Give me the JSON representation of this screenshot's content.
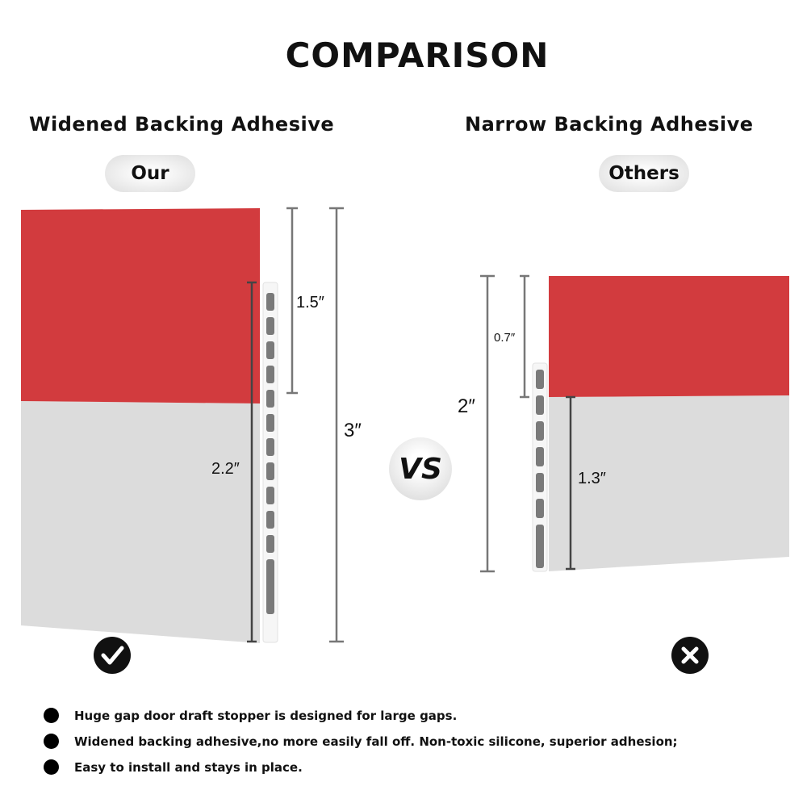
{
  "title": "COMPARISON",
  "left": {
    "heading": "Widened Backing Adhesive",
    "badge": "Our",
    "dims": {
      "top": "1.5″",
      "bottom": "2.2″",
      "total": "3″"
    },
    "verdict_icon": "check-icon"
  },
  "right": {
    "heading": "Narrow Backing Adhesive",
    "badge": "Others",
    "dims": {
      "top": "0.7″",
      "bottom": "1.3″",
      "total": "2″"
    },
    "verdict_icon": "x-icon"
  },
  "vs": "VS",
  "colors": {
    "red": "#d23b3e",
    "grey": "#dcdcdc",
    "slot": "#7a7a7a"
  },
  "bullets": [
    "Huge gap door draft stopper is designed for large gaps.",
    "Widened backing adhesive,no more easily fall off. Non-toxic silicone, superior adhesion;",
    "Easy to install and stays in place."
  ]
}
